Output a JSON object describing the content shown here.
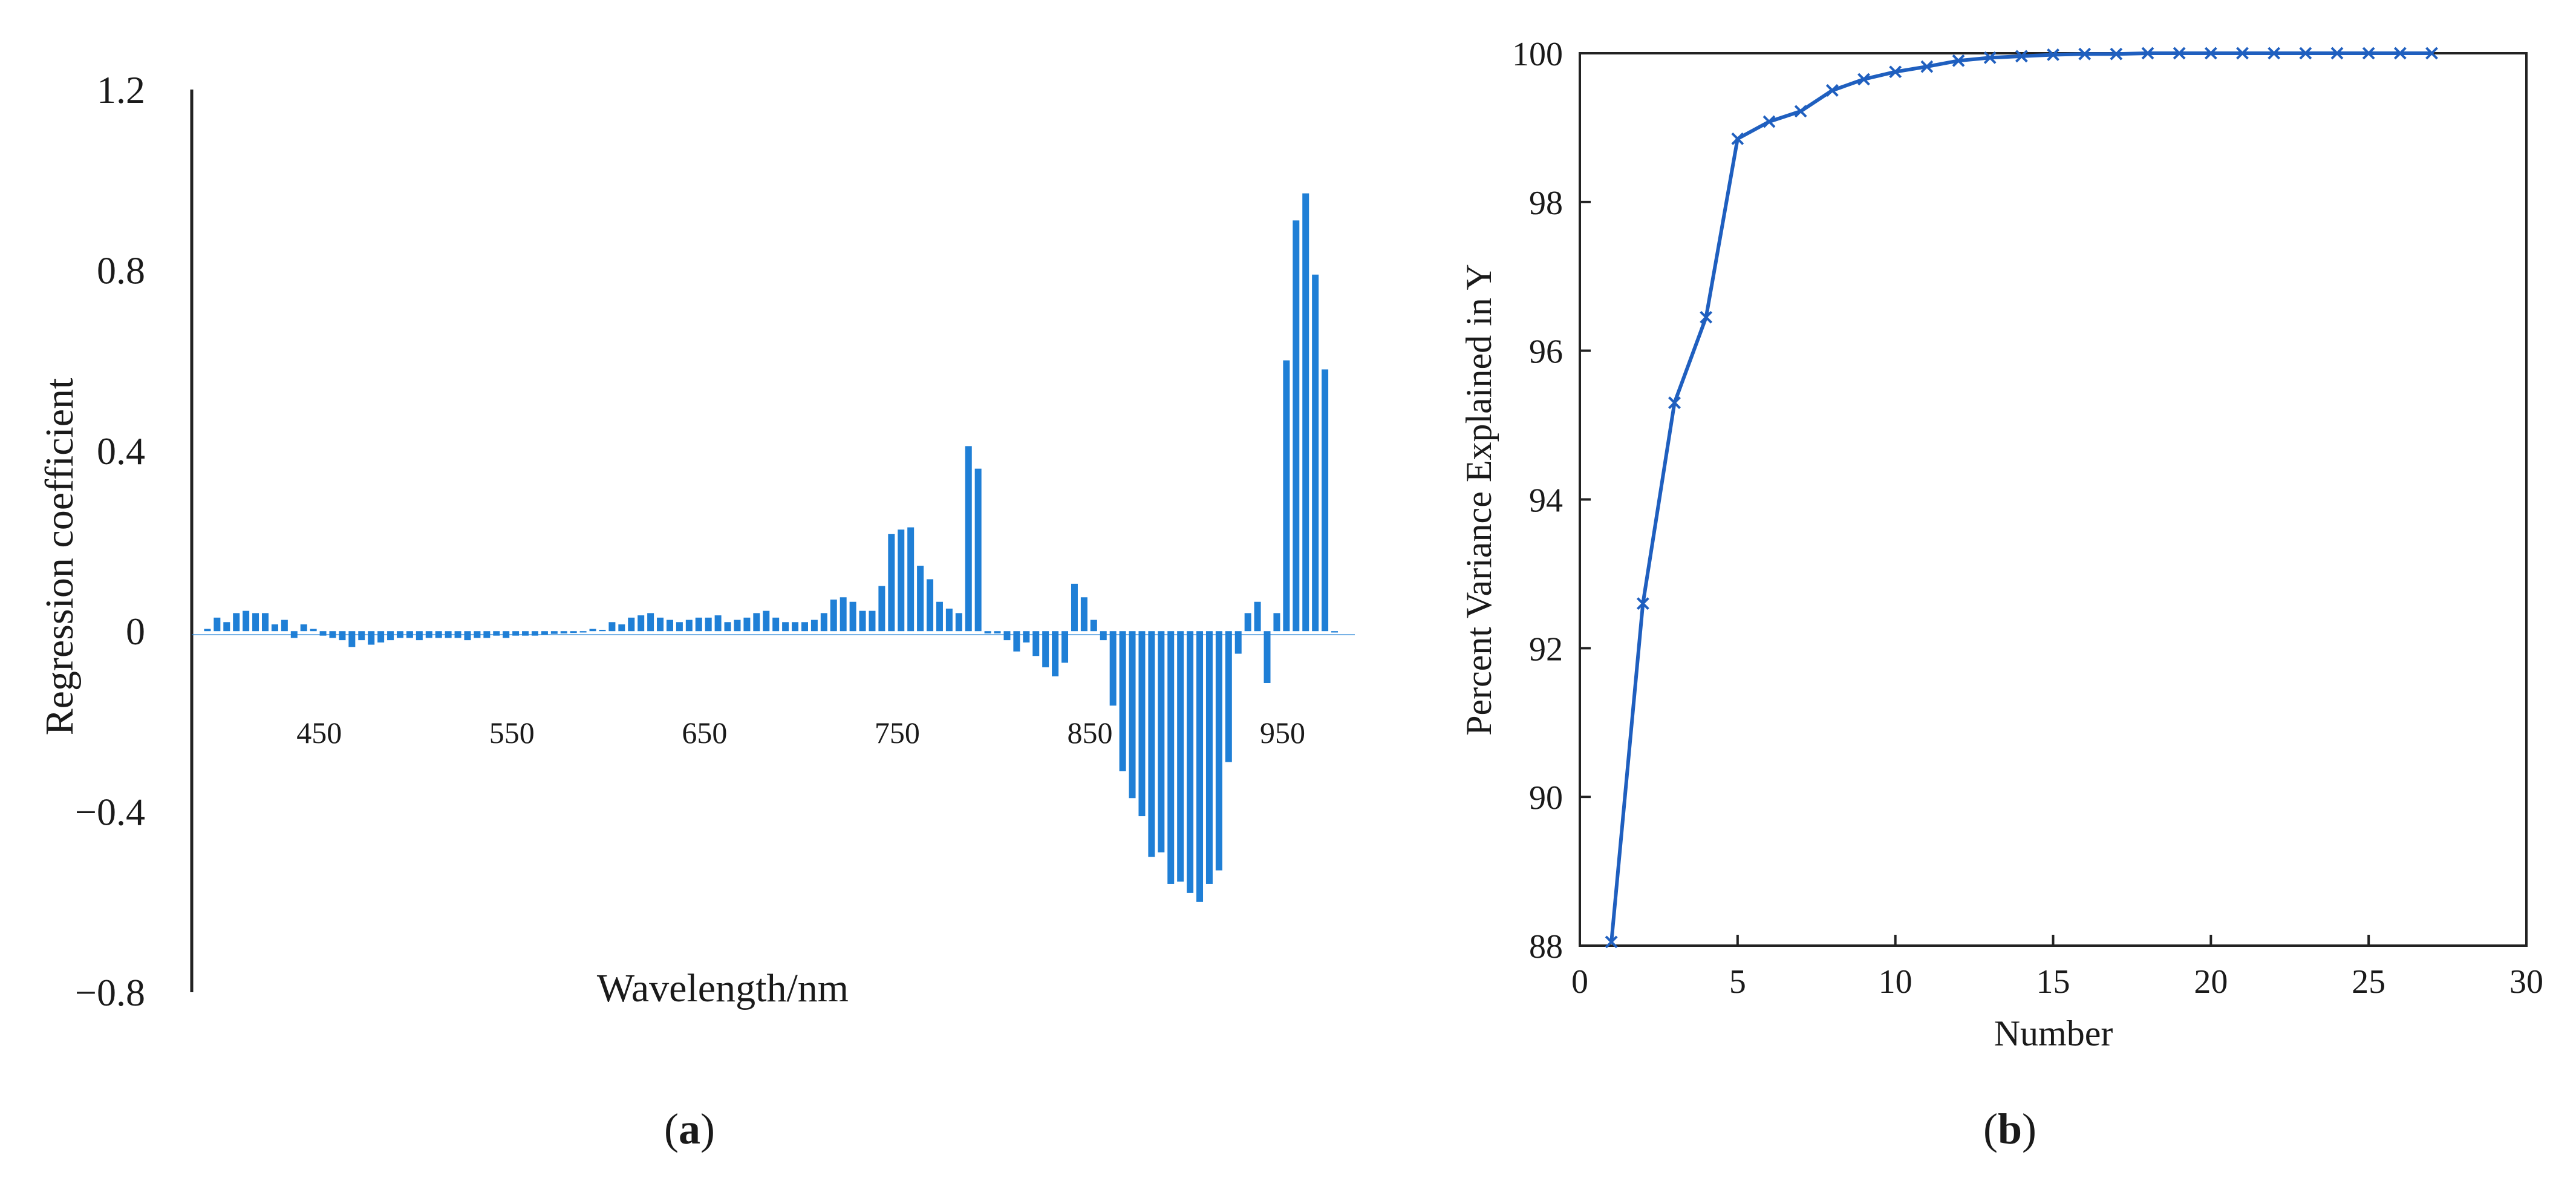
{
  "colors": {
    "bar": "#1f7fd6",
    "line": "#1f5fbf",
    "axis": "#222222",
    "text": "#1a1a1a"
  },
  "panels": [
    {
      "caption": "(a)",
      "caption_letter": "a"
    },
    {
      "caption": "(b)",
      "caption_letter": "b"
    }
  ],
  "chart_data": [
    {
      "type": "bar",
      "title": "",
      "xlabel": "Wavelength/nm",
      "ylabel": "Regression  coefficient",
      "ylim": [
        -0.8,
        1.2
      ],
      "xlim": [
        387,
        985
      ],
      "yticks": [
        1.2,
        0.8,
        0.4,
        0,
        -0.4,
        -0.8
      ],
      "ytick_labels": [
        "1.2",
        "0.8",
        "0.4",
        "0",
        "−0.4",
        "−0.8"
      ],
      "xticks": [
        450,
        550,
        650,
        750,
        850,
        950
      ],
      "xtick_labels": [
        "450",
        "550",
        "650",
        "750",
        "850",
        "950"
      ],
      "grid": false,
      "x": [
        392,
        397,
        402,
        407,
        412,
        417,
        422,
        427,
        432,
        437,
        442,
        447,
        452,
        457,
        462,
        467,
        472,
        477,
        482,
        487,
        492,
        497,
        502,
        507,
        512,
        517,
        522,
        527,
        532,
        537,
        542,
        547,
        552,
        557,
        562,
        567,
        572,
        577,
        582,
        587,
        592,
        597,
        602,
        607,
        612,
        617,
        622,
        627,
        632,
        637,
        642,
        647,
        652,
        657,
        662,
        667,
        672,
        677,
        682,
        687,
        692,
        697,
        702,
        707,
        712,
        717,
        722,
        727,
        732,
        737,
        742,
        747,
        752,
        757,
        762,
        767,
        772,
        777,
        782,
        787,
        792,
        797,
        802,
        807,
        812,
        817,
        822,
        827,
        832,
        837,
        842,
        847,
        852,
        857,
        862,
        867,
        872,
        877,
        882,
        887,
        892,
        897,
        902,
        907,
        912,
        917,
        922,
        927,
        932,
        937,
        942,
        947,
        952,
        957,
        962,
        967,
        972,
        977
      ],
      "values": [
        0.005,
        0.03,
        0.02,
        0.04,
        0.045,
        0.04,
        0.04,
        0.015,
        0.025,
        -0.015,
        0.015,
        0.005,
        -0.01,
        -0.015,
        -0.02,
        -0.035,
        -0.02,
        -0.03,
        -0.025,
        -0.02,
        -0.015,
        -0.015,
        -0.02,
        -0.015,
        -0.015,
        -0.015,
        -0.015,
        -0.02,
        -0.015,
        -0.015,
        -0.01,
        -0.015,
        -0.01,
        -0.01,
        -0.01,
        -0.008,
        -0.006,
        -0.005,
        -0.004,
        -0.003,
        0.005,
        0.003,
        0.02,
        0.015,
        0.03,
        0.035,
        0.04,
        0.03,
        0.025,
        0.02,
        0.025,
        0.03,
        0.03,
        0.035,
        0.02,
        0.025,
        0.03,
        0.04,
        0.045,
        0.03,
        0.02,
        0.02,
        0.02,
        0.025,
        0.04,
        0.07,
        0.075,
        0.065,
        0.045,
        0.045,
        0.1,
        0.215,
        0.225,
        0.23,
        0.145,
        0.115,
        0.065,
        0.05,
        0.04,
        0.41,
        0.36,
        -0.005,
        -0.005,
        -0.02,
        -0.045,
        -0.025,
        -0.055,
        -0.08,
        -0.1,
        -0.07,
        0.105,
        0.075,
        0.025,
        -0.02,
        -0.165,
        -0.31,
        -0.37,
        -0.41,
        -0.5,
        -0.49,
        -0.56,
        -0.555,
        -0.58,
        -0.6,
        -0.56,
        -0.53,
        -0.29,
        -0.05,
        0.04,
        0.065,
        -0.115,
        0.04,
        0.6,
        0.91,
        0.97,
        0.79,
        0.58,
        -0.003
      ]
    },
    {
      "type": "line",
      "title": "",
      "xlabel": "Number",
      "ylabel": "Percent Variance Explained in Y",
      "xlim": [
        0,
        30
      ],
      "ylim": [
        88,
        100
      ],
      "xticks": [
        0,
        5,
        10,
        15,
        20,
        25,
        30
      ],
      "xtick_labels": [
        "0",
        "5",
        "10",
        "15",
        "20",
        "25",
        "30"
      ],
      "yticks": [
        88,
        90,
        92,
        94,
        96,
        98,
        100
      ],
      "ytick_labels": [
        "88",
        "90",
        "92",
        "94",
        "96",
        "98",
        "100"
      ],
      "grid": false,
      "marker": "x",
      "x": [
        1,
        2,
        3,
        4,
        5,
        6,
        7,
        8,
        9,
        10,
        11,
        12,
        13,
        14,
        15,
        16,
        17,
        18,
        19,
        20,
        21,
        22,
        23,
        24,
        25,
        26,
        27
      ],
      "y": [
        88.05,
        92.6,
        95.3,
        96.45,
        98.85,
        99.08,
        99.22,
        99.5,
        99.65,
        99.75,
        99.82,
        99.9,
        99.94,
        99.96,
        99.98,
        99.99,
        99.99,
        100,
        100,
        100,
        100,
        100,
        100,
        100,
        100,
        100,
        100
      ]
    }
  ]
}
